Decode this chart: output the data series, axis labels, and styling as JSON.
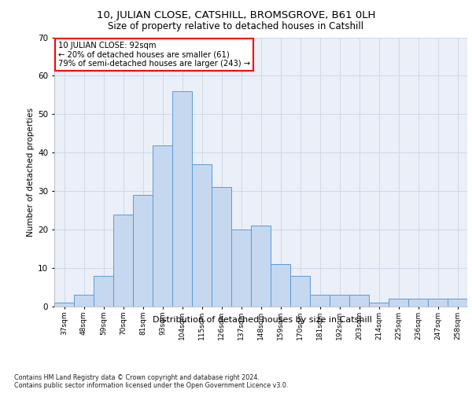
{
  "title": "10, JULIAN CLOSE, CATSHILL, BROMSGROVE, B61 0LH",
  "subtitle": "Size of property relative to detached houses in Catshill",
  "xlabel": "Distribution of detached houses by size in Catshill",
  "ylabel": "Number of detached properties",
  "bar_labels": [
    "37sqm",
    "48sqm",
    "59sqm",
    "70sqm",
    "81sqm",
    "93sqm",
    "104sqm",
    "115sqm",
    "126sqm",
    "137sqm",
    "148sqm",
    "159sqm",
    "170sqm",
    "181sqm",
    "192sqm",
    "203sqm",
    "214sqm",
    "225sqm",
    "236sqm",
    "247sqm",
    "258sqm"
  ],
  "bar_values": [
    1,
    3,
    8,
    24,
    29,
    42,
    56,
    37,
    31,
    20,
    21,
    11,
    8,
    3,
    3,
    3,
    1,
    2,
    2,
    2,
    2
  ],
  "bar_color": "#c5d8f0",
  "bar_edge_color": "#5b9bd5",
  "annotation_text": "10 JULIAN CLOSE: 92sqm\n← 20% of detached houses are smaller (61)\n79% of semi-detached houses are larger (243) →",
  "annotation_box_color": "white",
  "annotation_box_edge": "red",
  "ylim": [
    0,
    70
  ],
  "yticks": [
    0,
    10,
    20,
    30,
    40,
    50,
    60,
    70
  ],
  "grid_color": "#d0d8e8",
  "bg_color": "#eaeff8",
  "footnote1": "Contains HM Land Registry data © Crown copyright and database right 2024.",
  "footnote2": "Contains public sector information licensed under the Open Government Licence v3.0."
}
